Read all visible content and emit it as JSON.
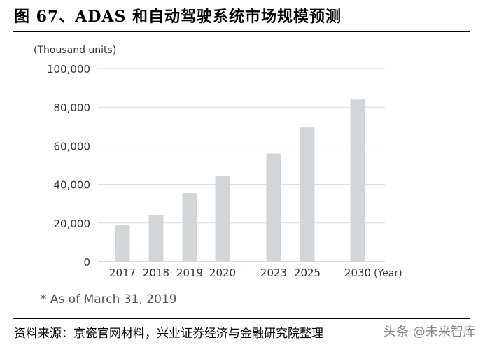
{
  "figure": {
    "title": "图 67、ADAS 和自动驾驶系统市场规模预测",
    "note": "* As of March 31, 2019",
    "source": "资料来源：京瓷官网材料，兴业证券经济与金融研究院整理",
    "watermark": "头条 @未来智库"
  },
  "chart_data": {
    "type": "bar",
    "title": "",
    "unit_label": "(Thousand units)",
    "x_axis_suffix": "(Year)",
    "categories": [
      "2017",
      "2018",
      "2019",
      "2020",
      "2023",
      "2025",
      "2030"
    ],
    "values": [
      19000,
      24000,
      35500,
      44500,
      56000,
      69500,
      84000
    ],
    "ylim": [
      0,
      100000
    ],
    "yticks": [
      0,
      20000,
      40000,
      60000,
      80000,
      100000
    ],
    "ytick_labels": [
      "0",
      "20,000",
      "40,000",
      "60,000",
      "80,000",
      "100,000"
    ],
    "bar_color": "#d2d6d9",
    "grid": true,
    "grid_color": "#dcdcdc"
  }
}
